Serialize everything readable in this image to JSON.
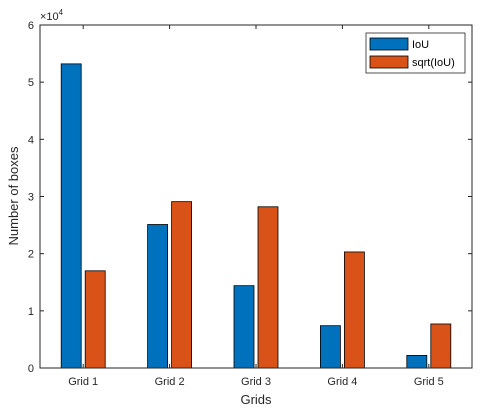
{
  "chart_data": {
    "type": "bar",
    "categories": [
      "Grid 1",
      "Grid 2",
      "Grid 3",
      "Grid 4",
      "Grid 5"
    ],
    "series": [
      {
        "name": "IoU",
        "values": [
          53200,
          25100,
          14400,
          7400,
          2200
        ],
        "color": "#0072BD"
      },
      {
        "name": "sqrt(IoU)",
        "values": [
          17000,
          29100,
          28200,
          20300,
          7700
        ],
        "color": "#D95319"
      }
    ],
    "title": "",
    "xlabel": "Grids",
    "ylabel": "Number of boxes",
    "ylim": [
      0,
      60000
    ],
    "yticks": [
      0,
      10000,
      20000,
      30000,
      40000,
      50000,
      60000
    ],
    "ytick_labels": [
      "0",
      "1",
      "2",
      "3",
      "4",
      "5",
      "6"
    ],
    "y_exponent": {
      "base": "×10",
      "power": "4"
    },
    "legend_position": "top-right",
    "grid": false
  }
}
